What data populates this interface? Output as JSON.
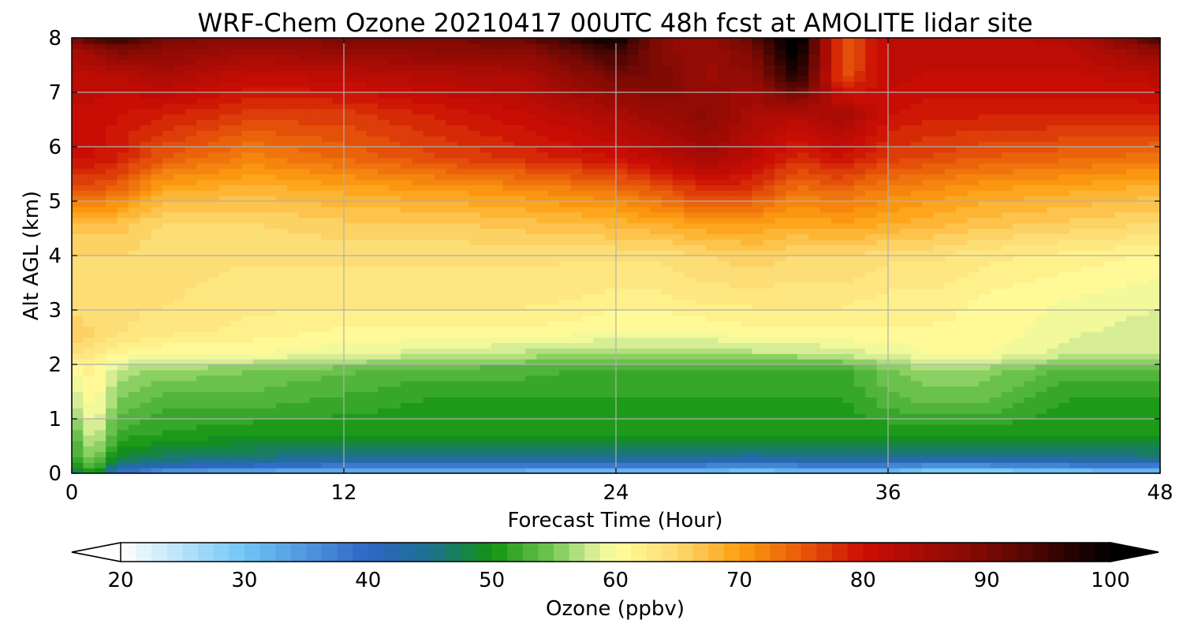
{
  "chart_data": {
    "type": "heatmap",
    "title": "WRF-Chem Ozone  20210417 00UTC 48h fcst at AMOLITE lidar site",
    "xlabel": "Forecast Time (Hour)",
    "ylabel": "Alt AGL (km)",
    "xlim": [
      0,
      48
    ],
    "ylim": [
      0,
      8
    ],
    "x_ticks": [
      0,
      12,
      24,
      36,
      48
    ],
    "y_ticks": [
      0,
      1,
      2,
      3,
      4,
      5,
      6,
      7,
      8
    ],
    "grid": true,
    "x": [
      0,
      2,
      4,
      6,
      8,
      10,
      12,
      14,
      16,
      18,
      20,
      22,
      24,
      26,
      28,
      30,
      32,
      34,
      36,
      38,
      40,
      42,
      44,
      46,
      48
    ],
    "y": [
      0,
      0.25,
      0.5,
      0.75,
      1,
      1.25,
      1.5,
      1.75,
      2,
      2.25,
      2.5,
      2.75,
      3,
      3.25,
      3.5,
      3.75,
      4,
      4.25,
      4.5,
      4.75,
      5,
      5.25,
      5.5,
      5.75,
      6,
      6.25,
      6.5,
      6.75,
      7,
      7.25,
      7.5,
      7.75,
      8
    ],
    "anchors": {
      "x": [
        0,
        1,
        2,
        4,
        8,
        12,
        16,
        20,
        24,
        26,
        28,
        30,
        32,
        34,
        36,
        38,
        40,
        44,
        48
      ],
      "y": [
        0,
        0.1,
        0.3,
        0.7,
        1.3,
        1.9,
        2.2,
        2.6,
        3.2,
        4.0,
        4.6,
        5.2,
        5.8,
        6.6,
        7.3,
        7.8,
        8
      ],
      "z": [
        [
          45,
          50,
          38,
          32,
          30,
          30,
          30,
          30,
          28,
          28,
          28,
          28,
          28,
          28,
          28,
          26,
          26,
          27,
          28
        ],
        [
          48,
          53,
          43,
          40,
          38,
          36,
          35,
          35,
          36,
          36,
          35,
          34,
          35,
          35,
          35,
          33,
          33,
          35,
          36
        ],
        [
          51,
          56,
          49,
          47,
          46,
          45,
          45,
          45,
          45,
          45,
          45,
          44,
          45,
          45,
          45,
          45,
          45,
          45,
          46
        ],
        [
          53,
          59,
          52,
          51,
          50,
          50,
          50,
          50,
          50,
          50,
          50,
          50,
          50,
          50,
          50,
          50,
          50,
          50,
          50
        ],
        [
          57,
          61,
          55,
          53,
          53,
          52,
          51,
          51,
          51,
          51,
          51,
          51,
          51,
          51,
          53,
          54,
          54,
          51,
          51
        ],
        [
          60,
          62,
          57,
          56,
          55,
          54,
          53,
          53,
          52,
          52,
          52,
          52,
          52,
          52,
          55,
          56,
          56,
          53,
          53
        ],
        [
          64,
          63,
          61,
          60,
          60,
          59,
          58,
          57,
          56,
          56,
          56,
          57,
          57,
          58,
          59,
          60,
          60,
          58,
          58
        ],
        [
          66,
          65,
          64,
          63,
          62,
          61,
          61,
          61,
          60,
          60,
          60,
          61,
          61,
          61,
          61,
          61,
          61,
          59,
          58
        ],
        [
          64,
          64,
          64,
          64,
          63,
          63,
          63,
          63,
          62,
          62,
          63,
          63,
          63,
          63,
          62,
          62,
          61,
          60,
          59
        ],
        [
          65,
          65,
          65,
          64,
          64,
          64,
          64,
          64,
          64,
          64,
          65,
          66,
          65,
          65,
          64,
          64,
          63,
          62,
          61
        ],
        [
          67,
          67,
          67,
          65,
          65,
          66,
          66,
          67,
          68,
          69,
          70,
          70,
          69,
          70,
          69,
          68,
          67,
          66,
          65
        ],
        [
          75,
          75,
          74,
          69,
          68,
          69,
          70,
          71,
          73,
          75,
          78,
          77,
          73,
          74,
          72,
          71,
          70,
          69,
          68
        ],
        [
          80,
          80,
          79,
          75,
          72,
          74,
          76,
          78,
          80,
          82,
          85,
          82,
          78,
          80,
          77,
          76,
          75,
          74,
          73
        ],
        [
          81,
          81,
          80,
          79,
          77,
          77,
          79,
          81,
          84,
          86,
          88,
          84,
          83,
          85,
          80,
          79,
          79,
          79,
          79
        ],
        [
          82,
          82,
          82,
          84,
          81,
          82,
          83,
          84,
          90,
          90,
          86,
          87,
          98,
          75,
          82,
          81,
          81,
          81,
          82
        ],
        [
          84,
          87,
          90,
          88,
          86,
          87,
          88,
          88,
          96,
          88,
          86,
          90,
          102,
          74,
          82,
          82,
          82,
          82,
          88
        ],
        [
          90,
          95,
          96,
          90,
          88,
          90,
          90,
          92,
          100,
          88,
          86,
          92,
          103,
          74,
          82,
          82,
          82,
          83,
          95
        ]
      ]
    },
    "colorbar": {
      "label": "Ozone  (ppbv)",
      "min": 20,
      "max": 100,
      "ticks": [
        20,
        30,
        40,
        50,
        60,
        70,
        80,
        90,
        100
      ],
      "extend": "both",
      "stops": [
        {
          "v": 20,
          "c": "#ffffff"
        },
        {
          "v": 30,
          "c": "#70c5f5"
        },
        {
          "v": 40,
          "c": "#2f66c5"
        },
        {
          "v": 45,
          "c": "#1d7090"
        },
        {
          "v": 50,
          "c": "#119311"
        },
        {
          "v": 55,
          "c": "#77c854"
        },
        {
          "v": 58,
          "c": "#d4ec95"
        },
        {
          "v": 60,
          "c": "#ffff9c"
        },
        {
          "v": 65,
          "c": "#fdd970"
        },
        {
          "v": 70,
          "c": "#fd9f11"
        },
        {
          "v": 75,
          "c": "#e75a0a"
        },
        {
          "v": 80,
          "c": "#cc0d04"
        },
        {
          "v": 90,
          "c": "#7a0a04"
        },
        {
          "v": 100,
          "c": "#000000"
        }
      ]
    }
  }
}
